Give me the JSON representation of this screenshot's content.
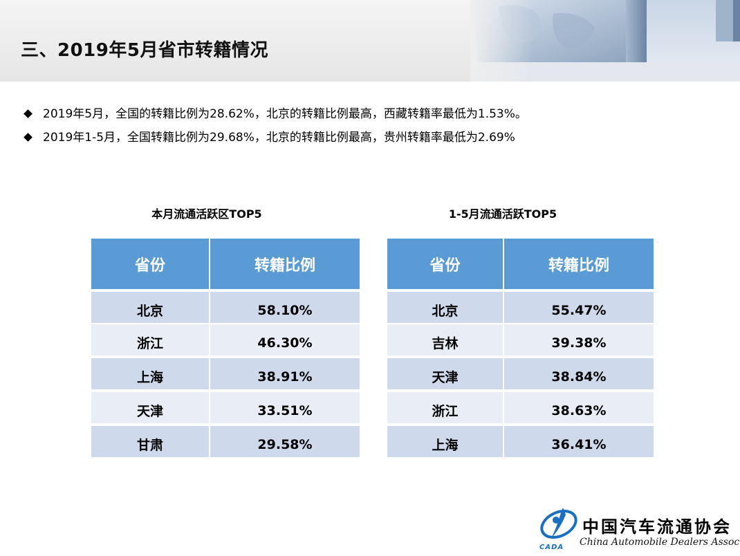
{
  "title": "三、2019年5月省市转籍情况",
  "bullets": [
    "2019年5月，全国的转籍比例为28.62%，北京的转籍比例最高，西藏转籍率最低为1.53%。",
    "2019年1-5月，全国转籍比例为29.68%，北京的转籍比例最高，贵州转籍率最低为2.69%"
  ],
  "tables": [
    {
      "title": "本月流通活跃区TOP5",
      "headers": [
        "省份",
        "转籍比例"
      ],
      "rows": [
        {
          "province": "北京",
          "ratio": "58.10%"
        },
        {
          "province": "浙江",
          "ratio": "46.30%"
        },
        {
          "province": "上海",
          "ratio": "38.91%"
        },
        {
          "province": "天津",
          "ratio": "33.51%"
        },
        {
          "province": "甘肃",
          "ratio": "29.58%"
        }
      ]
    },
    {
      "title": "1-5月流通活跃TOP5",
      "headers": [
        "省份",
        "转籍比例"
      ],
      "rows": [
        {
          "province": "北京",
          "ratio": "55.47%"
        },
        {
          "province": "吉林",
          "ratio": "39.38%"
        },
        {
          "province": "天津",
          "ratio": "38.84%"
        },
        {
          "province": "浙江",
          "ratio": "38.63%"
        },
        {
          "province": "上海",
          "ratio": "36.41%"
        }
      ]
    }
  ],
  "logo": {
    "name_cn": "中国汽车流通协会",
    "name_en": "China Automobile Dealers Association",
    "abbrev": "CADA"
  },
  "colors": {
    "header_fill": "#5b9bd5",
    "row_dark": "#cfd9ec",
    "row_light": "#e8edf6",
    "logo_blue": "#1a6fc0"
  }
}
